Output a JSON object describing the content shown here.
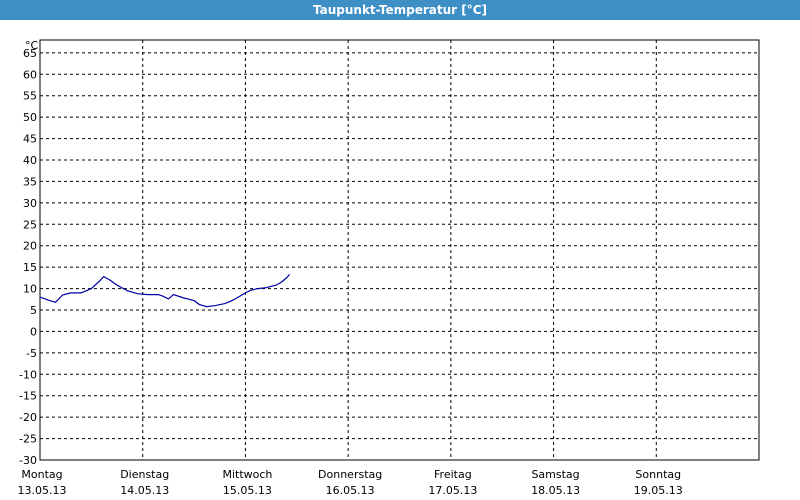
{
  "window": {
    "title": "Taupunkt-Temperatur [°C]"
  },
  "colors": {
    "titlebar": "#3d8fc6",
    "series": "#0000aa",
    "grid": "#000000"
  },
  "chart_data": {
    "type": "line",
    "title": "Taupunkt-Temperatur [°C]",
    "yunit": "°C",
    "ylim": [
      -30,
      68
    ],
    "yticks": [
      65,
      60,
      55,
      50,
      45,
      40,
      35,
      30,
      25,
      20,
      15,
      10,
      5,
      0,
      -5,
      -10,
      -15,
      -20,
      -25,
      -30
    ],
    "xlim": [
      0,
      7
    ],
    "grid": true,
    "days": [
      {
        "day": "Montag",
        "date": "13.05.13"
      },
      {
        "day": "Dienstag",
        "date": "14.05.13"
      },
      {
        "day": "Mittwoch",
        "date": "15.05.13"
      },
      {
        "day": "Donnerstag",
        "date": "16.05.13"
      },
      {
        "day": "Freitag",
        "date": "17.05.13"
      },
      {
        "day": "Samstag",
        "date": "18.05.13"
      },
      {
        "day": "Sonntag",
        "date": "19.05.13"
      }
    ],
    "series": [
      {
        "points": [
          [
            0.0,
            8.0
          ],
          [
            0.08,
            7.3
          ],
          [
            0.15,
            6.8
          ],
          [
            0.22,
            8.5
          ],
          [
            0.3,
            9.0
          ],
          [
            0.4,
            9.0
          ],
          [
            0.5,
            10.0
          ],
          [
            0.58,
            11.8
          ],
          [
            0.62,
            12.8
          ],
          [
            0.68,
            12.0
          ],
          [
            0.75,
            10.8
          ],
          [
            0.85,
            9.5
          ],
          [
            0.95,
            8.8
          ],
          [
            1.05,
            8.6
          ],
          [
            1.15,
            8.6
          ],
          [
            1.2,
            8.2
          ],
          [
            1.25,
            7.6
          ],
          [
            1.3,
            8.6
          ],
          [
            1.4,
            7.8
          ],
          [
            1.5,
            7.2
          ],
          [
            1.55,
            6.3
          ],
          [
            1.62,
            5.8
          ],
          [
            1.7,
            6.0
          ],
          [
            1.8,
            6.5
          ],
          [
            1.88,
            7.3
          ],
          [
            1.95,
            8.3
          ],
          [
            2.0,
            9.0
          ],
          [
            2.05,
            9.6
          ],
          [
            2.12,
            10.0
          ],
          [
            2.2,
            10.2
          ],
          [
            2.3,
            10.8
          ],
          [
            2.35,
            11.5
          ],
          [
            2.4,
            12.5
          ],
          [
            2.43,
            13.3
          ]
        ]
      }
    ]
  }
}
